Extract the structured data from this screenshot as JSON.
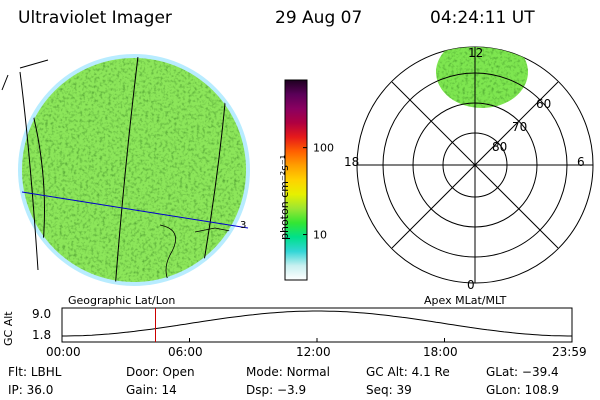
{
  "header": {
    "instrument": "Ultraviolet Imager",
    "date": "29 Aug 07",
    "time": "04:24:11 UT"
  },
  "colorbar": {
    "unit_label": "photon cm⁻²s⁻¹",
    "ticks": [
      "100",
      "10"
    ],
    "tick_values": [
      100,
      10
    ],
    "range_min": 3,
    "range_max": 600,
    "stops": [
      "#ffffff",
      "#c8f0f0",
      "#33d6d6",
      "#00e08a",
      "#33e633",
      "#9be633",
      "#e6f000",
      "#ffd200",
      "#ffa000",
      "#ff6000",
      "#e61a1a",
      "#b00040",
      "#8a0060",
      "#5a0058",
      "#1e0020"
    ]
  },
  "image_panel": {
    "label": "Geographic Lat/Lon",
    "fill_color": "#8ce65a",
    "grid_color": "#000000",
    "line_color": "#0000cc",
    "edge_color": "#b8ecff",
    "marker_label": "3"
  },
  "polar_panel": {
    "label": "Apex MLat/MLT",
    "mlt_labels": [
      "12",
      "18",
      "6",
      "0"
    ],
    "lat_labels": [
      "60",
      "70",
      "80"
    ],
    "cap_color": "#7ee650"
  },
  "altitude_plot": {
    "ylabel": "GC Alt",
    "yticks": [
      "9.0",
      "1.8"
    ],
    "xticks": [
      "00:00",
      "06:00",
      "12:00",
      "18:00",
      "23:59"
    ],
    "current_hour": 4.4,
    "marker_color": "#cc0000"
  },
  "info": {
    "filter": {
      "key": "Flt:",
      "value": "LBHL"
    },
    "door": {
      "key": "Door:",
      "value": "Open"
    },
    "mode": {
      "key": "Mode:",
      "value": "Normal"
    },
    "gc_alt": {
      "key": "GC Alt:",
      "value": "4.1 Re"
    },
    "glat": {
      "key": "GLat:",
      "value": "−39.4"
    },
    "ip": {
      "key": "IP:",
      "value": "36.0"
    },
    "gain": {
      "key": "Gain:",
      "value": "14"
    },
    "dsp": {
      "key": "Dsp:",
      "value": "−3.9"
    },
    "seq": {
      "key": "Seq:",
      "value": "39"
    },
    "glon": {
      "key": "GLon:",
      "value": "108.9"
    }
  }
}
